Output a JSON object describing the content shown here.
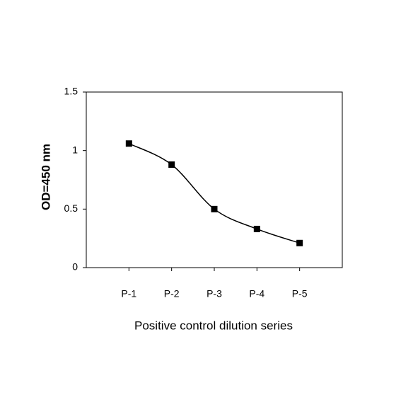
{
  "chart_data": {
    "type": "line",
    "x_label": "Positive control dilution series",
    "y_label": "OD=450 nm",
    "categories": [
      "P-1",
      "P-2",
      "P-3",
      "P-4",
      "P-5"
    ],
    "values": [
      1.06,
      0.88,
      0.5,
      0.33,
      0.21
    ],
    "color": "#000000",
    "ylim": [
      0,
      1.5
    ],
    "yticks": [
      0,
      0.5,
      1,
      1.5
    ]
  }
}
